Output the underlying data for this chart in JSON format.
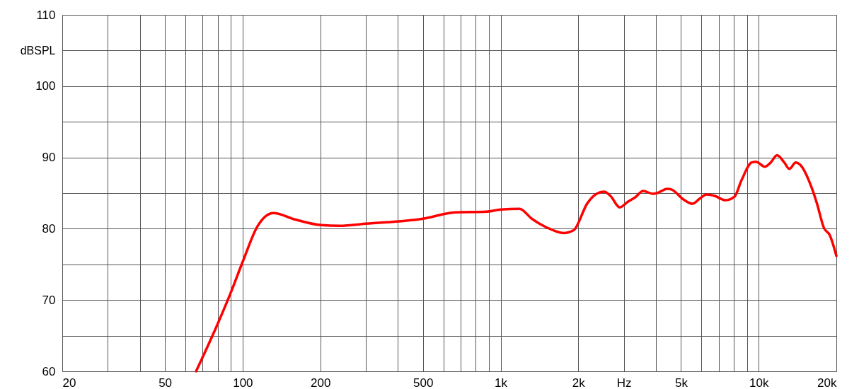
{
  "chart_data": {
    "type": "line",
    "ylabel": "dBSPL",
    "xlim": [
      20,
      20000
    ],
    "ylim": [
      60,
      110
    ],
    "log": "x",
    "grid": true,
    "marker": "none",
    "line_style": "solid",
    "xticks": [
      20,
      {
        "value": 30,
        "label": null
      },
      {
        "value": 40,
        "label": null
      },
      50,
      {
        "value": 60,
        "label": null
      },
      {
        "value": 70,
        "label": null
      },
      {
        "value": 80,
        "label": null
      },
      {
        "value": 90,
        "label": null
      },
      100,
      200,
      {
        "value": 300,
        "label": null
      },
      {
        "value": 400,
        "label": null
      },
      500,
      {
        "value": 600,
        "label": null
      },
      {
        "value": 700,
        "label": null
      },
      {
        "value": 800,
        "label": null
      },
      {
        "value": 900,
        "label": null
      },
      {
        "value": 1000,
        "label": "1k"
      },
      {
        "value": 2000,
        "label": "2k"
      },
      {
        "value": 3000,
        "label": "Hz"
      },
      {
        "value": 4000,
        "label": null
      },
      {
        "value": 5000,
        "label": "5k"
      },
      {
        "value": 6000,
        "label": null
      },
      {
        "value": 7000,
        "label": null
      },
      {
        "value": 8000,
        "label": null
      },
      {
        "value": 9000,
        "label": null
      },
      {
        "value": 10000,
        "label": "10k"
      },
      {
        "value": 20000,
        "label": "20k"
      }
    ],
    "yticks": [
      60,
      {
        "value": 65,
        "label": null
      },
      70,
      {
        "value": 75,
        "label": null
      },
      80,
      {
        "value": 85,
        "label": null
      },
      90,
      {
        "value": 95,
        "label": null
      },
      100,
      {
        "value": 105,
        "label": null
      },
      110
    ],
    "series": [
      {
        "color": "#ff0000",
        "x": [
          66,
          79.7,
          89.2,
          100.9,
          114,
          131.7,
          159.6,
          202,
          237.6,
          300,
          499,
          667,
          882,
          1000,
          1183,
          1321,
          1594,
          1752,
          1918,
          2170,
          2355,
          2516,
          2665,
          2894,
          3118,
          3323,
          3563,
          3892,
          4044,
          4420,
          4590,
          5110,
          5543,
          5900,
          6280,
          6760,
          7420,
          8060,
          8580,
          9400,
          9760,
          10560,
          11140,
          11780,
          12560,
          13150,
          13920,
          14550,
          15990,
          16800,
          17910,
          18860,
          20000
        ],
        "values": [
          60.0,
          66.5,
          70.7,
          75.7,
          80.3,
          82.2,
          81.3,
          80.5,
          80.4,
          80.7,
          81.4,
          82.3,
          82.4,
          82.7,
          82.8,
          81.4,
          79.8,
          79.4,
          79.8,
          83.6,
          84.9,
          85.2,
          84.6,
          83.0,
          83.8,
          84.4,
          85.3,
          84.9,
          85.0,
          85.6,
          85.5,
          84.1,
          83.5,
          84.2,
          84.8,
          84.6,
          84.0,
          84.5,
          86.8,
          89.3,
          89.4,
          88.7,
          89.3,
          90.3,
          89.3,
          88.4,
          89.3,
          88.9,
          85.9,
          83.6,
          80.1,
          79.1,
          76.2
        ]
      }
    ]
  }
}
